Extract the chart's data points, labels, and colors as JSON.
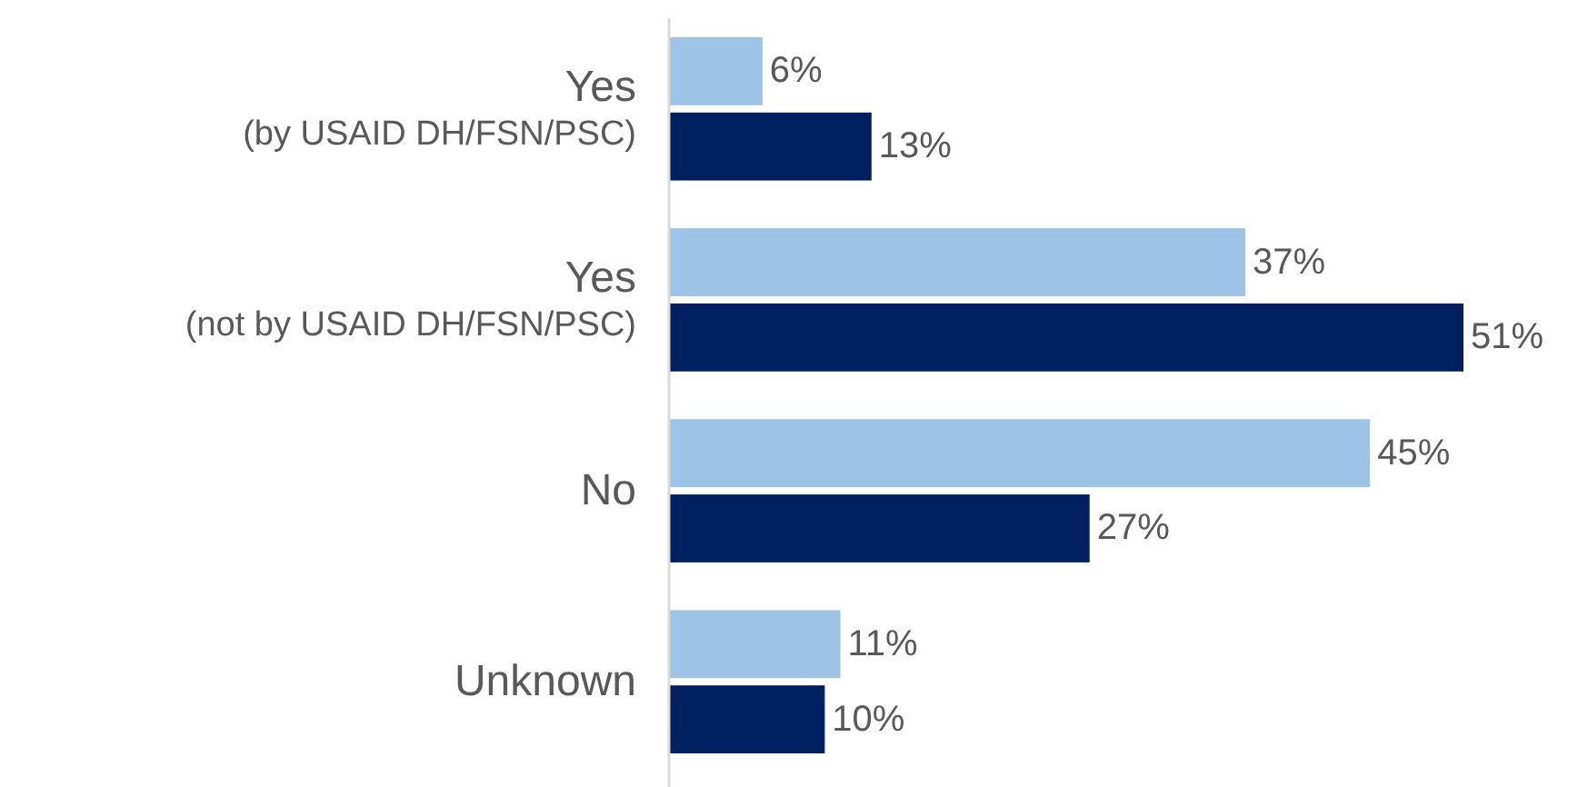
{
  "chart_data": {
    "type": "bar",
    "orientation": "horizontal",
    "categories": [
      "Yes\n(by USAID DH/FSN/PSC)",
      "Yes\n(not by USAID DH/FSN/PSC)",
      "No",
      "Unknown"
    ],
    "series": [
      {
        "color": "#9dc3e6",
        "values": [
          6,
          37,
          45,
          11
        ],
        "value_labels": [
          "6%",
          "37%",
          "45%",
          "11%"
        ]
      },
      {
        "color": "#002060",
        "values": [
          13,
          51,
          27,
          10
        ],
        "value_labels": [
          "13%",
          "51%",
          "27%",
          "10%"
        ]
      }
    ],
    "tick_labels": "y"
  }
}
